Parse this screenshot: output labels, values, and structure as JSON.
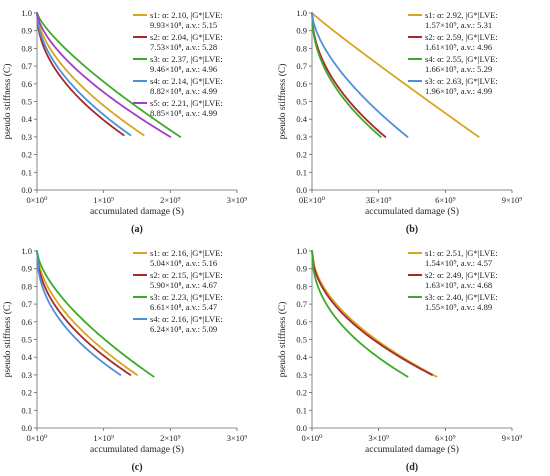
{
  "chart_data": [
    {
      "type": "line",
      "panel_label": "(a)",
      "xlabel": "accumulated damage (S)",
      "ylabel": "pseudo stiffness (C)",
      "xlim": [
        0,
        3000000000
      ],
      "ylim": [
        0,
        1.0
      ],
      "xticks": [
        0,
        1000000000,
        2000000000,
        3000000000
      ],
      "xtick_labels": [
        "0×10⁰",
        "1×10⁹",
        "2×10⁹",
        "3×10⁹"
      ],
      "yticks": [
        0,
        0.1,
        0.2,
        0.3,
        0.4,
        0.5,
        0.6,
        0.7,
        0.8,
        0.9,
        1.0
      ],
      "ytick_labels": [
        "0.0",
        "0.1",
        "0.2",
        "0.3",
        "0.4",
        "0.5",
        "0.6",
        "0.7",
        "0.8",
        "0.9",
        "1.0"
      ],
      "grid": false,
      "legend": "top-right",
      "series": [
        {
          "name": "s1",
          "legend_line1": "s1: α: 2.10, |G*|LVE:",
          "legend_line2": "9.93×10⁸, a.v.: 5.15",
          "color": "#d9a520",
          "k": 1.7,
          "x": [
            0,
            100000000,
            300000000,
            500000000,
            800000000,
            1100000000,
            1400000000,
            1600000000
          ],
          "y": [
            1.0,
            0.82,
            0.68,
            0.59,
            0.49,
            0.41,
            0.34,
            0.31
          ]
        },
        {
          "name": "s2",
          "legend_line1": "s2: α: 2.04, |G*|LVE:",
          "legend_line2": "7.53×10⁸, a.v.: 5.28",
          "color": "#a52a2a",
          "k": 2.0,
          "x": [
            0,
            100000000,
            300000000,
            500000000,
            800000000,
            1100000000,
            1300000000
          ],
          "y": [
            1.0,
            0.8,
            0.65,
            0.55,
            0.44,
            0.36,
            0.31
          ]
        },
        {
          "name": "s3",
          "legend_line1": "s3: α: 2.37, |G*|LVE:",
          "legend_line2": "9.46×10⁸, a.v.: 4.96",
          "color": "#3daa2a",
          "k": 1.3,
          "x": [
            0,
            100000000,
            300000000,
            600000000,
            1000000000,
            1400000000,
            1800000000,
            2150000000
          ],
          "y": [
            1.0,
            0.85,
            0.74,
            0.64,
            0.54,
            0.45,
            0.37,
            0.3
          ]
        },
        {
          "name": "s4",
          "legend_line1": "s4: α: 2.14, |G*|LVE:",
          "legend_line2": "8.82×10⁸, a.v.: 4.99",
          "color": "#4d90d9",
          "k": 1.85,
          "x": [
            0,
            100000000,
            300000000,
            500000000,
            800000000,
            1100000000,
            1400000000
          ],
          "y": [
            1.0,
            0.81,
            0.67,
            0.58,
            0.47,
            0.39,
            0.31
          ]
        },
        {
          "name": "s5",
          "legend_line1": "s5: α: 2.21, |G*|LVE:",
          "legend_line2": "8.85×10⁸, a.v.: 4.99",
          "color": "#a040c0",
          "k": 1.55,
          "x": [
            0,
            100000000,
            300000000,
            600000000,
            1000000000,
            1400000000,
            1750000000,
            2000000000
          ],
          "y": [
            1.0,
            0.84,
            0.71,
            0.6,
            0.5,
            0.41,
            0.34,
            0.3
          ]
        }
      ]
    },
    {
      "type": "line",
      "panel_label": "(b)",
      "xlabel": "accumulated damage (S)",
      "ylabel": "pseudo stiffness (C)",
      "xlim": [
        0,
        9000000000
      ],
      "ylim": [
        0,
        1.0
      ],
      "xticks": [
        0,
        3000000000,
        6000000000,
        9000000000
      ],
      "xtick_labels": [
        "0E×10⁰",
        "3E×10⁹",
        "6×10⁹",
        "9×10⁹"
      ],
      "yticks": [
        0,
        0.1,
        0.2,
        0.3,
        0.4,
        0.5,
        0.6,
        0.7,
        0.8,
        0.9,
        1.0
      ],
      "ytick_labels": [
        "0.0",
        "0.1",
        "0.2",
        "0.3",
        "0.4",
        "0.5",
        "0.6",
        "0.7",
        "0.8",
        "0.9",
        "1.0"
      ],
      "grid": false,
      "legend": "top-right",
      "series": [
        {
          "name": "s1",
          "legend_line1": "s1: α: 2.92, |G*|LVE:",
          "legend_line2": "1.57×10⁹, a.v.: 5.31",
          "color": "#d9a520",
          "k": 1.05,
          "x": [
            0,
            300000000,
            1000000000,
            2000000000,
            3000000000,
            4500000000,
            6000000000,
            7500000000
          ],
          "y": [
            1.0,
            0.85,
            0.72,
            0.62,
            0.55,
            0.47,
            0.39,
            0.3
          ]
        },
        {
          "name": "s2",
          "legend_line1": "s2: α: 2.59, |G*|LVE:",
          "legend_line2": "1.61×10⁹, a.v.: 4.96",
          "color": "#a52a2a",
          "k": 2.0,
          "x": [
            0,
            200000000,
            800000000,
            1500000000,
            2200000000,
            2800000000,
            3300000000
          ],
          "y": [
            1.0,
            0.82,
            0.68,
            0.56,
            0.46,
            0.37,
            0.3
          ]
        },
        {
          "name": "s4",
          "legend_line1": "s4: α: 2.55, |G*|LVE:",
          "legend_line2": "1.66×10⁹, a.v.: 5.29",
          "color": "#3daa2a",
          "k": 2.1,
          "x": [
            0,
            200000000,
            800000000,
            1500000000,
            2100000000,
            2700000000,
            3100000000
          ],
          "y": [
            1.0,
            0.81,
            0.67,
            0.55,
            0.45,
            0.36,
            0.3
          ]
        },
        {
          "name": "s3",
          "legend_line1": "s3: α: 2.63, |G*|LVE:",
          "legend_line2": "1.96×10⁹, a.v.: 4.99",
          "color": "#4d90d9",
          "k": 1.6,
          "x": [
            0,
            200000000,
            800000000,
            1600000000,
            2600000000,
            3500000000,
            4300000000
          ],
          "y": [
            1.0,
            0.83,
            0.7,
            0.58,
            0.47,
            0.38,
            0.3
          ]
        }
      ]
    },
    {
      "type": "line",
      "panel_label": "(c)",
      "xlabel": "accumulated damage (S)",
      "ylabel": "pseudo stiffness (C)",
      "xlim": [
        0,
        3000000000
      ],
      "ylim": [
        0,
        1.0
      ],
      "xticks": [
        0,
        1000000000,
        2000000000,
        3000000000
      ],
      "xtick_labels": [
        "0×10⁰",
        "1×10⁹",
        "2×10⁹",
        "3×10⁹"
      ],
      "yticks": [
        0,
        0.1,
        0.2,
        0.3,
        0.4,
        0.5,
        0.6,
        0.7,
        0.8,
        0.9,
        1.0
      ],
      "ytick_labels": [
        "0.0",
        "0.1",
        "0.2",
        "0.3",
        "0.4",
        "0.5",
        "0.6",
        "0.7",
        "0.8",
        "0.9",
        "1.0"
      ],
      "grid": false,
      "legend": "top-right",
      "series": [
        {
          "name": "s1",
          "legend_line1": "s1: α: 2.16, |G*|LVE:",
          "legend_line2": "5.04×10⁸, a.v.: 5.16",
          "color": "#d9a520",
          "k": 1.8,
          "x": [
            0,
            100000000,
            300000000,
            600000000,
            900000000,
            1200000000,
            1500000000
          ],
          "y": [
            1.0,
            0.8,
            0.65,
            0.53,
            0.44,
            0.36,
            0.3
          ]
        },
        {
          "name": "s2",
          "legend_line1": "s2: α: 2.15, |G*|LVE:",
          "legend_line2": "5.90×10⁸, a.v.: 4.67",
          "color": "#a52a2a",
          "k": 2.0,
          "x": [
            0,
            100000000,
            300000000,
            600000000,
            900000000,
            1200000000,
            1400000000
          ],
          "y": [
            1.0,
            0.79,
            0.64,
            0.52,
            0.43,
            0.35,
            0.3
          ]
        },
        {
          "name": "s3",
          "legend_line1": "s3: α: 2.23, |G*|LVE:",
          "legend_line2": "6.61×10⁸, a.v.: 5.47",
          "color": "#3daa2a",
          "k": 1.55,
          "x": [
            0,
            100000000,
            300000000,
            600000000,
            1000000000,
            1400000000,
            1750000000
          ],
          "y": [
            1.0,
            0.81,
            0.67,
            0.55,
            0.45,
            0.36,
            0.29
          ]
        },
        {
          "name": "s4",
          "legend_line1": "s4: α: 2.16, |G*|LVE:",
          "legend_line2": "6.24×10⁸, a.v.: 5.09",
          "color": "#4d90d9",
          "k": 2.2,
          "x": [
            0,
            100000000,
            300000000,
            500000000,
            800000000,
            1050000000,
            1250000000
          ],
          "y": [
            1.0,
            0.78,
            0.63,
            0.53,
            0.43,
            0.36,
            0.3
          ]
        }
      ]
    },
    {
      "type": "line",
      "panel_label": "(d)",
      "xlabel": "accumulated damage (S)",
      "ylabel": "pseudo stiffness (C)",
      "xlim": [
        0,
        9000000000
      ],
      "ylim": [
        0,
        1.0
      ],
      "xticks": [
        0,
        3000000000,
        6000000000,
        9000000000
      ],
      "xtick_labels": [
        "0×10⁰",
        "3×10⁹",
        "6×10⁹",
        "9×10⁹"
      ],
      "yticks": [
        0,
        0.1,
        0.2,
        0.3,
        0.4,
        0.5,
        0.6,
        0.7,
        0.8,
        0.9,
        1.0
      ],
      "ytick_labels": [
        "0.0",
        "0.1",
        "0.2",
        "0.3",
        "0.4",
        "0.5",
        "0.6",
        "0.7",
        "0.8",
        "0.9",
        "1.0"
      ],
      "grid": false,
      "legend": "top-right",
      "series": [
        {
          "name": "s1",
          "legend_line1": "s1: α: 2.51, |G*|LVE:",
          "legend_line2": "1.54×10⁹, a.v.: 4.57",
          "color": "#d9a520",
          "k": 1.9,
          "x": [
            0,
            200000000,
            800000000,
            1600000000,
            2600000000,
            3700000000,
            4700000000,
            5600000000
          ],
          "y": [
            1.0,
            0.8,
            0.65,
            0.55,
            0.47,
            0.4,
            0.34,
            0.29
          ]
        },
        {
          "name": "s2",
          "legend_line1": "s2: α: 2.49, |G*|LVE:",
          "legend_line2": "1.63×10⁹, a.v.: 4.68",
          "color": "#a52a2a",
          "k": 2.0,
          "x": [
            0,
            200000000,
            800000000,
            1600000000,
            2600000000,
            3700000000,
            4600000000,
            5400000000
          ],
          "y": [
            1.0,
            0.79,
            0.64,
            0.54,
            0.46,
            0.39,
            0.34,
            0.3
          ]
        },
        {
          "name": "s3",
          "legend_line1": "s3: α: 2.40, |G*|LVE:",
          "legend_line2": "1.55×10⁹, a.v.: 4.89",
          "color": "#3daa2a",
          "k": 2.2,
          "x": [
            0,
            200000000,
            800000000,
            1500000000,
            2300000000,
            3100000000,
            3800000000,
            4300000000
          ],
          "y": [
            1.0,
            0.78,
            0.63,
            0.53,
            0.45,
            0.38,
            0.33,
            0.29
          ]
        }
      ]
    }
  ]
}
